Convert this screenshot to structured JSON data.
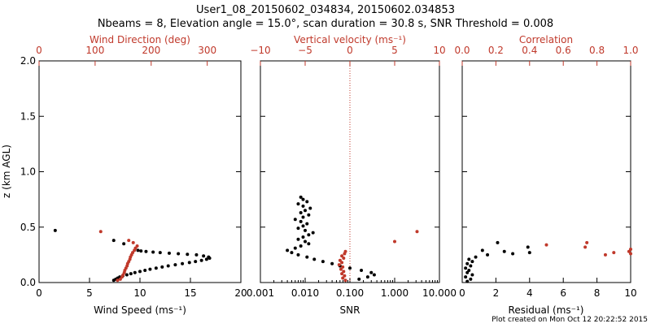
{
  "header": {
    "title": "User1_08_20150602_034834, 20150602.034853",
    "subtitle": "Nbeams = 8, Elevation angle = 15.0°, scan duration = 30.8 s, SNR Threshold = 0.008"
  },
  "footer": {
    "created": "Plot created on Mon Oct 12 20:22:52 2015"
  },
  "colors": {
    "primary": "#000000",
    "accent": "#c0392b",
    "bright": "#ff0000"
  },
  "chart_data": [
    {
      "type": "scatter",
      "id": "wind",
      "xlabel": "Wind Speed (ms⁻¹)",
      "x_top_label": "Wind Direction (deg)",
      "ylabel": "z (km AGL)",
      "xlim": [
        0,
        20
      ],
      "x_top_lim": [
        0,
        360
      ],
      "ylim": [
        0,
        2.0
      ],
      "xticks": [
        "0",
        "5",
        "10",
        "15",
        "20"
      ],
      "x_top_ticks": [
        "0",
        "100",
        "200",
        "300"
      ],
      "yticks": [
        "0.0",
        "0.5",
        "1.0",
        "1.5",
        "2.0"
      ],
      "series": [
        {
          "role": "wind_speed",
          "color": "#000000",
          "marker": "dot",
          "points": [
            [
              7.4,
              0.02
            ],
            [
              7.6,
              0.03
            ],
            [
              7.8,
              0.04
            ],
            [
              8.0,
              0.05
            ],
            [
              8.3,
              0.06
            ],
            [
              8.7,
              0.07
            ],
            [
              9.1,
              0.08
            ],
            [
              9.5,
              0.09
            ],
            [
              10.0,
              0.1
            ],
            [
              10.5,
              0.11
            ],
            [
              11.0,
              0.12
            ],
            [
              11.6,
              0.13
            ],
            [
              12.2,
              0.14
            ],
            [
              12.8,
              0.15
            ],
            [
              13.5,
              0.16
            ],
            [
              14.2,
              0.17
            ],
            [
              14.9,
              0.18
            ],
            [
              15.5,
              0.19
            ],
            [
              16.1,
              0.2
            ],
            [
              16.6,
              0.21
            ],
            [
              16.9,
              0.22
            ],
            [
              16.8,
              0.23
            ],
            [
              16.3,
              0.24
            ],
            [
              15.6,
              0.25
            ],
            [
              14.7,
              0.255
            ],
            [
              13.8,
              0.26
            ],
            [
              12.9,
              0.265
            ],
            [
              12.0,
              0.27
            ],
            [
              11.3,
              0.275
            ],
            [
              10.6,
              0.28
            ],
            [
              10.1,
              0.285
            ],
            [
              9.8,
              0.29
            ],
            [
              8.4,
              0.35
            ],
            [
              7.4,
              0.38
            ],
            [
              1.6,
              0.47
            ]
          ]
        },
        {
          "role": "wind_direction",
          "color": "#c0392b",
          "marker": "dot",
          "points": [
            [
              140,
              0.02
            ],
            [
              145,
              0.03
            ],
            [
              148,
              0.05
            ],
            [
              150,
              0.07
            ],
            [
              152,
              0.09
            ],
            [
              153,
              0.11
            ],
            [
              155,
              0.13
            ],
            [
              157,
              0.15
            ],
            [
              158,
              0.17
            ],
            [
              160,
              0.19
            ],
            [
              162,
              0.21
            ],
            [
              163,
              0.23
            ],
            [
              165,
              0.25
            ],
            [
              167,
              0.27
            ],
            [
              170,
              0.29
            ],
            [
              172,
              0.31
            ],
            [
              175,
              0.33
            ],
            [
              168,
              0.36
            ],
            [
              160,
              0.38
            ],
            [
              110,
              0.46
            ]
          ]
        }
      ]
    },
    {
      "type": "scatter",
      "id": "vertical",
      "xlabel": "SNR",
      "x_top_label": "Vertical velocity (ms⁻¹)",
      "x_scale": "log",
      "xlim": [
        0.001,
        10
      ],
      "x_top_lim": [
        -10,
        10
      ],
      "ylim": [
        0,
        2.0
      ],
      "xticks": [
        "0.001",
        "0.010",
        "0.100",
        "1.000",
        "10.000"
      ],
      "x_top_ticks": [
        "−10",
        "−5",
        "0",
        "5",
        "10"
      ],
      "series": [
        {
          "role": "snr",
          "color": "#000000",
          "marker": "dot",
          "points": [
            [
              0.16,
              0.03
            ],
            [
              0.25,
              0.05
            ],
            [
              0.35,
              0.07
            ],
            [
              0.3,
              0.09
            ],
            [
              0.18,
              0.11
            ],
            [
              0.1,
              0.13
            ],
            [
              0.06,
              0.15
            ],
            [
              0.04,
              0.17
            ],
            [
              0.025,
              0.19
            ],
            [
              0.016,
              0.21
            ],
            [
              0.011,
              0.23
            ],
            [
              0.007,
              0.25
            ],
            [
              0.005,
              0.27
            ],
            [
              0.004,
              0.29
            ],
            [
              0.006,
              0.31
            ],
            [
              0.008,
              0.33
            ],
            [
              0.012,
              0.35
            ],
            [
              0.01,
              0.37
            ],
            [
              0.007,
              0.39
            ],
            [
              0.009,
              0.41
            ],
            [
              0.012,
              0.43
            ],
            [
              0.015,
              0.45
            ],
            [
              0.01,
              0.47
            ],
            [
              0.007,
              0.49
            ],
            [
              0.009,
              0.51
            ],
            [
              0.011,
              0.53
            ],
            [
              0.008,
              0.55
            ],
            [
              0.006,
              0.57
            ],
            [
              0.009,
              0.59
            ],
            [
              0.012,
              0.61
            ],
            [
              0.008,
              0.63
            ],
            [
              0.01,
              0.65
            ],
            [
              0.013,
              0.67
            ],
            [
              0.009,
              0.69
            ],
            [
              0.007,
              0.71
            ],
            [
              0.011,
              0.73
            ],
            [
              0.009,
              0.75
            ],
            [
              0.008,
              0.77
            ]
          ]
        },
        {
          "role": "vertical_velocity",
          "color": "#c0392b",
          "marker": "dot",
          "points": [
            [
              -0.5,
              0.02
            ],
            [
              -0.8,
              0.04
            ],
            [
              -0.6,
              0.06
            ],
            [
              -0.9,
              0.08
            ],
            [
              -0.7,
              0.1
            ],
            [
              -1.0,
              0.12
            ],
            [
              -0.8,
              0.14
            ],
            [
              -1.2,
              0.16
            ],
            [
              -0.9,
              0.18
            ],
            [
              -1.1,
              0.2
            ],
            [
              -0.7,
              0.22
            ],
            [
              -0.9,
              0.24
            ],
            [
              -0.6,
              0.26
            ],
            [
              -0.5,
              0.28
            ],
            [
              5.0,
              0.37
            ],
            [
              7.5,
              0.46
            ]
          ]
        }
      ],
      "reference_line": {
        "axis": "x_top",
        "value": 0
      }
    },
    {
      "type": "scatter",
      "id": "residual",
      "xlabel": "Residual (ms⁻¹)",
      "x_top_label": "Correlation",
      "xlim": [
        0,
        10
      ],
      "x_top_lim": [
        0,
        1.0
      ],
      "ylim": [
        0,
        2.0
      ],
      "xticks": [
        "0",
        "2",
        "4",
        "6",
        "8",
        "10"
      ],
      "x_top_ticks": [
        "0.0",
        "0.2",
        "0.4",
        "0.6",
        "0.8",
        "1.0"
      ],
      "series": [
        {
          "role": "residual",
          "color": "#000000",
          "marker": "dot",
          "points": [
            [
              0.3,
              0.01
            ],
            [
              0.5,
              0.03
            ],
            [
              0.2,
              0.05
            ],
            [
              0.6,
              0.07
            ],
            [
              0.3,
              0.09
            ],
            [
              0.4,
              0.11
            ],
            [
              0.2,
              0.13
            ],
            [
              0.5,
              0.15
            ],
            [
              0.3,
              0.17
            ],
            [
              0.6,
              0.19
            ],
            [
              0.4,
              0.21
            ],
            [
              0.8,
              0.23
            ],
            [
              1.5,
              0.25
            ],
            [
              3.0,
              0.26
            ],
            [
              4.0,
              0.27
            ],
            [
              2.5,
              0.28
            ],
            [
              1.2,
              0.29
            ],
            [
              3.9,
              0.32
            ],
            [
              2.1,
              0.36
            ]
          ]
        },
        {
          "role": "correlation",
          "color": "#c0392b",
          "marker": "dot",
          "points": [
            [
              0.5,
              0.34
            ],
            [
              0.74,
              0.36
            ],
            [
              0.73,
              0.32
            ],
            [
              0.85,
              0.25
            ],
            [
              1.0,
              0.26
            ],
            [
              0.99,
              0.28
            ],
            [
              1.0,
              0.3
            ],
            [
              0.9,
              0.27
            ]
          ]
        }
      ]
    }
  ]
}
